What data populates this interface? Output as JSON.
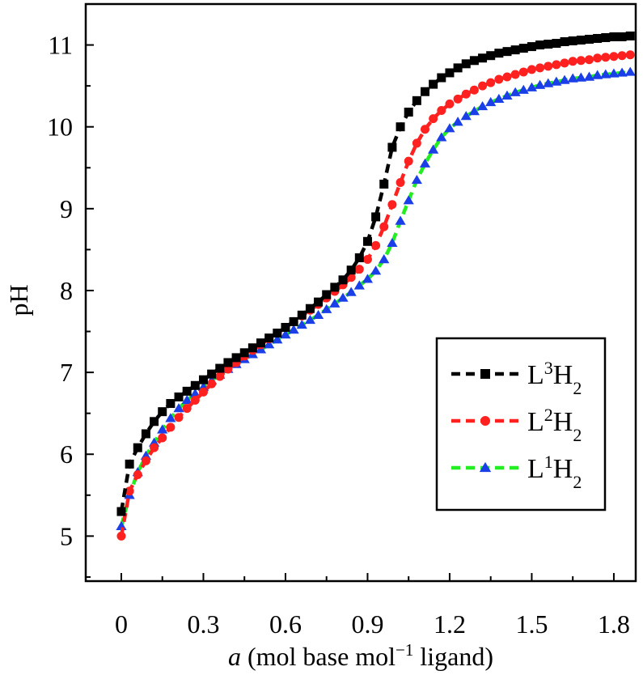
{
  "chart_data": {
    "type": "line",
    "title": "",
    "xlabel": {
      "italic": "a",
      "pre": " (mol base mol",
      "sup": "−1",
      "post": " ligand)"
    },
    "ylabel": "pH",
    "xlim": [
      -0.13,
      1.88
    ],
    "ylim": [
      4.45,
      11.5
    ],
    "xticks": [
      0,
      0.3,
      0.6,
      0.9,
      1.2,
      1.5,
      1.8
    ],
    "xtick_labels": [
      "0",
      "0.3",
      "0.6",
      "0.9",
      "1.2",
      "1.5",
      "1.8"
    ],
    "yticks": [
      5,
      6,
      7,
      8,
      9,
      10,
      11
    ],
    "ytick_labels": [
      "5",
      "6",
      "7",
      "8",
      "9",
      "10",
      "11"
    ],
    "grid": false,
    "legend_position": "center-right",
    "x": [
      0,
      0.03,
      0.06,
      0.09,
      0.12,
      0.15,
      0.18,
      0.21,
      0.24,
      0.27,
      0.3,
      0.33,
      0.36,
      0.39,
      0.42,
      0.45,
      0.48,
      0.51,
      0.54,
      0.57,
      0.6,
      0.63,
      0.66,
      0.69,
      0.72,
      0.75,
      0.78,
      0.81,
      0.84,
      0.87,
      0.9,
      0.93,
      0.96,
      0.99,
      1.02,
      1.05,
      1.08,
      1.11,
      1.14,
      1.17,
      1.2,
      1.23,
      1.26,
      1.29,
      1.32,
      1.35,
      1.38,
      1.41,
      1.44,
      1.47,
      1.5,
      1.53,
      1.56,
      1.59,
      1.62,
      1.65,
      1.68,
      1.71,
      1.74,
      1.77,
      1.8,
      1.83,
      1.86
    ],
    "series": [
      {
        "name": "L3H2",
        "label": {
          "base": "L",
          "sup": "3",
          "mid": "H",
          "sub": "2"
        },
        "color": "#000000",
        "marker": "square",
        "values": [
          5.3,
          5.88,
          6.08,
          6.25,
          6.4,
          6.52,
          6.62,
          6.7,
          6.77,
          6.84,
          6.91,
          6.98,
          7.05,
          7.12,
          7.18,
          7.24,
          7.3,
          7.36,
          7.42,
          7.48,
          7.55,
          7.62,
          7.7,
          7.78,
          7.86,
          7.95,
          8.04,
          8.13,
          8.25,
          8.4,
          8.6,
          8.9,
          9.3,
          9.75,
          10.0,
          10.18,
          10.32,
          10.43,
          10.52,
          10.6,
          10.66,
          10.72,
          10.77,
          10.81,
          10.84,
          10.87,
          10.9,
          10.92,
          10.94,
          10.96,
          10.98,
          11.0,
          11.01,
          11.02,
          11.04,
          11.05,
          11.06,
          11.07,
          11.08,
          11.09,
          11.1,
          11.1,
          11.11
        ]
      },
      {
        "name": "L2H2",
        "label": {
          "base": "L",
          "sup": "2",
          "mid": "H",
          "sub": "2"
        },
        "color": "#ff2020",
        "marker": "circle",
        "values": [
          5.0,
          5.55,
          5.75,
          5.92,
          6.08,
          6.2,
          6.33,
          6.45,
          6.56,
          6.66,
          6.76,
          6.86,
          6.95,
          7.04,
          7.12,
          7.2,
          7.27,
          7.34,
          7.41,
          7.48,
          7.55,
          7.62,
          7.69,
          7.76,
          7.83,
          7.91,
          7.99,
          8.07,
          8.16,
          8.26,
          8.38,
          8.55,
          8.78,
          9.05,
          9.32,
          9.58,
          9.8,
          9.97,
          10.1,
          10.2,
          10.28,
          10.34,
          10.4,
          10.45,
          10.5,
          10.54,
          10.58,
          10.61,
          10.64,
          10.67,
          10.7,
          10.72,
          10.74,
          10.76,
          10.78,
          10.8,
          10.81,
          10.82,
          10.84,
          10.85,
          10.86,
          10.87,
          10.88
        ]
      },
      {
        "name": "L1H2",
        "label": {
          "base": "L",
          "sup": "1",
          "mid": "H",
          "sub": "2"
        },
        "color": "#22ee22",
        "marker_color": "#1a3fe8",
        "marker": "triangle",
        "values": [
          5.12,
          5.5,
          5.78,
          5.98,
          6.14,
          6.3,
          6.44,
          6.56,
          6.66,
          6.74,
          6.82,
          6.9,
          6.97,
          7.04,
          7.1,
          7.16,
          7.22,
          7.28,
          7.34,
          7.4,
          7.46,
          7.52,
          7.58,
          7.64,
          7.7,
          7.77,
          7.84,
          7.91,
          7.98,
          8.06,
          8.14,
          8.24,
          8.38,
          8.58,
          8.85,
          9.1,
          9.35,
          9.55,
          9.72,
          9.87,
          9.98,
          10.06,
          10.13,
          10.19,
          10.25,
          10.3,
          10.34,
          10.38,
          10.42,
          10.45,
          10.48,
          10.51,
          10.53,
          10.55,
          10.57,
          10.59,
          10.6,
          10.61,
          10.63,
          10.64,
          10.65,
          10.66,
          10.67
        ]
      }
    ]
  }
}
